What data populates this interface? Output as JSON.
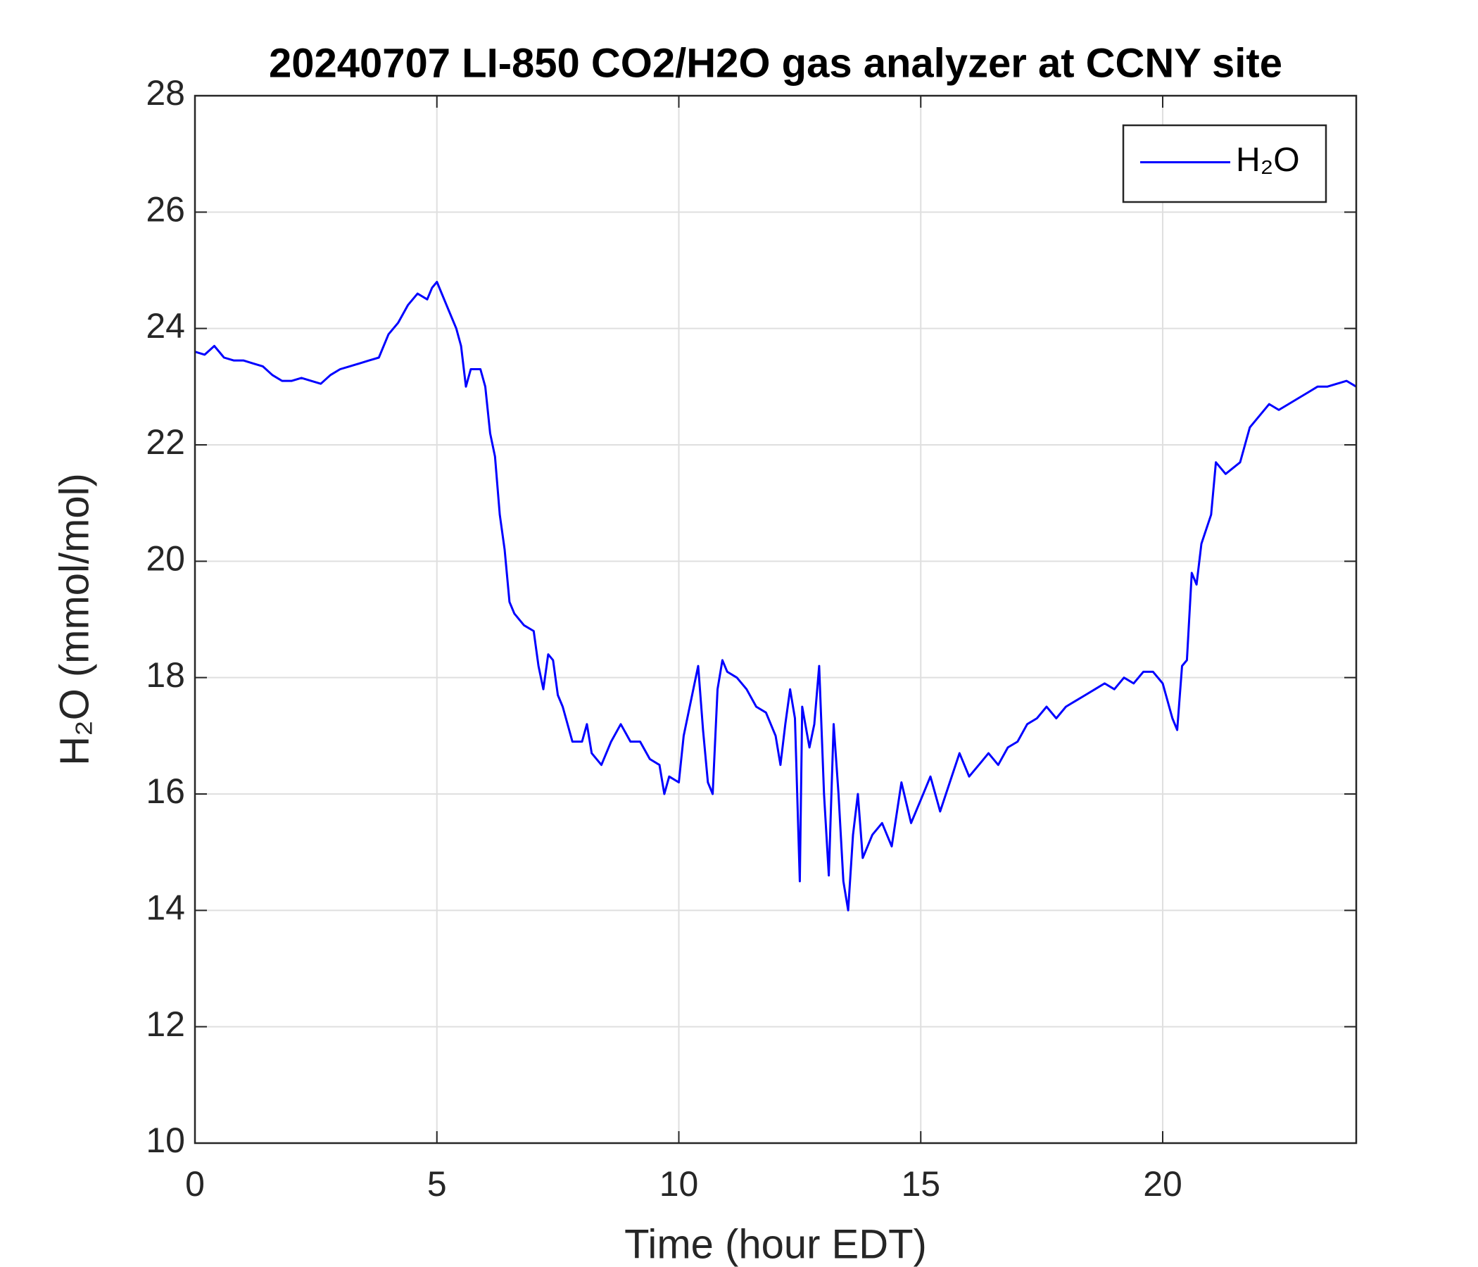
{
  "chart_data": {
    "type": "line",
    "title": "20240707 LI-850 CO2/H2O gas analyzer at CCNY site",
    "x_label": "Time (hour EDT)",
    "y_label": "H₂O (mmol/mol)",
    "x": [
      0,
      0.2,
      0.4,
      0.6,
      0.8,
      1.0,
      1.2,
      1.4,
      1.6,
      1.8,
      2.0,
      2.2,
      2.4,
      2.6,
      2.8,
      3.0,
      3.2,
      3.4,
      3.6,
      3.8,
      4.0,
      4.2,
      4.4,
      4.6,
      4.8,
      4.9,
      5.0,
      5.2,
      5.4,
      5.5,
      5.6,
      5.7,
      5.9,
      6.0,
      6.1,
      6.2,
      6.3,
      6.4,
      6.5,
      6.6,
      6.8,
      7.0,
      7.1,
      7.2,
      7.3,
      7.4,
      7.5,
      7.6,
      7.8,
      8.0,
      8.1,
      8.2,
      8.4,
      8.6,
      8.8,
      9.0,
      9.2,
      9.4,
      9.6,
      9.7,
      9.8,
      10.0,
      10.1,
      10.3,
      10.4,
      10.5,
      10.6,
      10.7,
      10.8,
      10.9,
      11.0,
      11.2,
      11.4,
      11.6,
      11.8,
      12.0,
      12.1,
      12.2,
      12.3,
      12.4,
      12.5,
      12.55,
      12.7,
      12.8,
      12.9,
      13.0,
      13.1,
      13.2,
      13.3,
      13.4,
      13.5,
      13.6,
      13.7,
      13.8,
      14.0,
      14.2,
      14.4,
      14.6,
      14.8,
      15.0,
      15.2,
      15.4,
      15.6,
      15.8,
      16.0,
      16.2,
      16.4,
      16.6,
      16.8,
      17.0,
      17.2,
      17.4,
      17.6,
      17.8,
      18.0,
      18.2,
      18.4,
      18.6,
      18.8,
      19.0,
      19.2,
      19.4,
      19.6,
      19.8,
      20.0,
      20.2,
      20.3,
      20.4,
      20.5,
      20.6,
      20.7,
      20.8,
      21.0,
      21.1,
      21.3,
      21.6,
      21.8,
      22.0,
      22.2,
      22.4,
      22.6,
      22.8,
      23.0,
      23.2,
      23.4,
      23.6,
      23.8,
      24.0
    ],
    "series": [
      {
        "name": "H₂O",
        "color": "#0000ff",
        "values": [
          23.6,
          23.55,
          23.7,
          23.5,
          23.45,
          23.45,
          23.4,
          23.35,
          23.2,
          23.1,
          23.1,
          23.15,
          23.1,
          23.05,
          23.2,
          23.3,
          23.35,
          23.4,
          23.45,
          23.5,
          23.9,
          24.1,
          24.4,
          24.6,
          24.5,
          24.7,
          24.8,
          24.4,
          24.0,
          23.7,
          23.0,
          23.3,
          23.3,
          23.0,
          22.2,
          21.8,
          20.8,
          20.2,
          19.3,
          19.1,
          18.9,
          18.8,
          18.2,
          17.8,
          18.4,
          18.3,
          17.7,
          17.5,
          16.9,
          16.9,
          17.2,
          16.7,
          16.5,
          16.9,
          17.2,
          16.9,
          16.9,
          16.6,
          16.5,
          16.0,
          16.3,
          16.2,
          17.0,
          17.8,
          18.2,
          17.1,
          16.2,
          16.0,
          17.8,
          18.3,
          18.1,
          18.0,
          17.8,
          17.5,
          17.4,
          17.0,
          16.5,
          17.2,
          17.8,
          17.3,
          14.5,
          17.5,
          16.8,
          17.2,
          18.2,
          16.0,
          14.6,
          17.2,
          16.0,
          14.5,
          14.0,
          15.3,
          16.0,
          14.9,
          15.3,
          15.5,
          15.1,
          16.2,
          15.5,
          15.9,
          16.3,
          15.7,
          16.2,
          16.7,
          16.3,
          16.5,
          16.7,
          16.5,
          16.8,
          16.9,
          17.2,
          17.3,
          17.5,
          17.3,
          17.5,
          17.6,
          17.7,
          17.8,
          17.9,
          17.8,
          18.0,
          17.9,
          18.1,
          18.1,
          17.9,
          17.3,
          17.1,
          18.2,
          18.3,
          19.8,
          19.6,
          20.3,
          20.8,
          21.7,
          21.5,
          21.7,
          22.3,
          22.5,
          22.7,
          22.6,
          22.7,
          22.8,
          22.9,
          23.0,
          23.0,
          23.05,
          23.1,
          23.0
        ]
      }
    ],
    "xlim": [
      0,
      24
    ],
    "xticks": [
      0,
      5,
      10,
      15,
      20
    ],
    "ylim": [
      10,
      28
    ],
    "yticks": [
      10,
      12,
      14,
      16,
      18,
      20,
      22,
      24,
      26,
      28
    ],
    "grid": true,
    "legend": "upper right"
  }
}
